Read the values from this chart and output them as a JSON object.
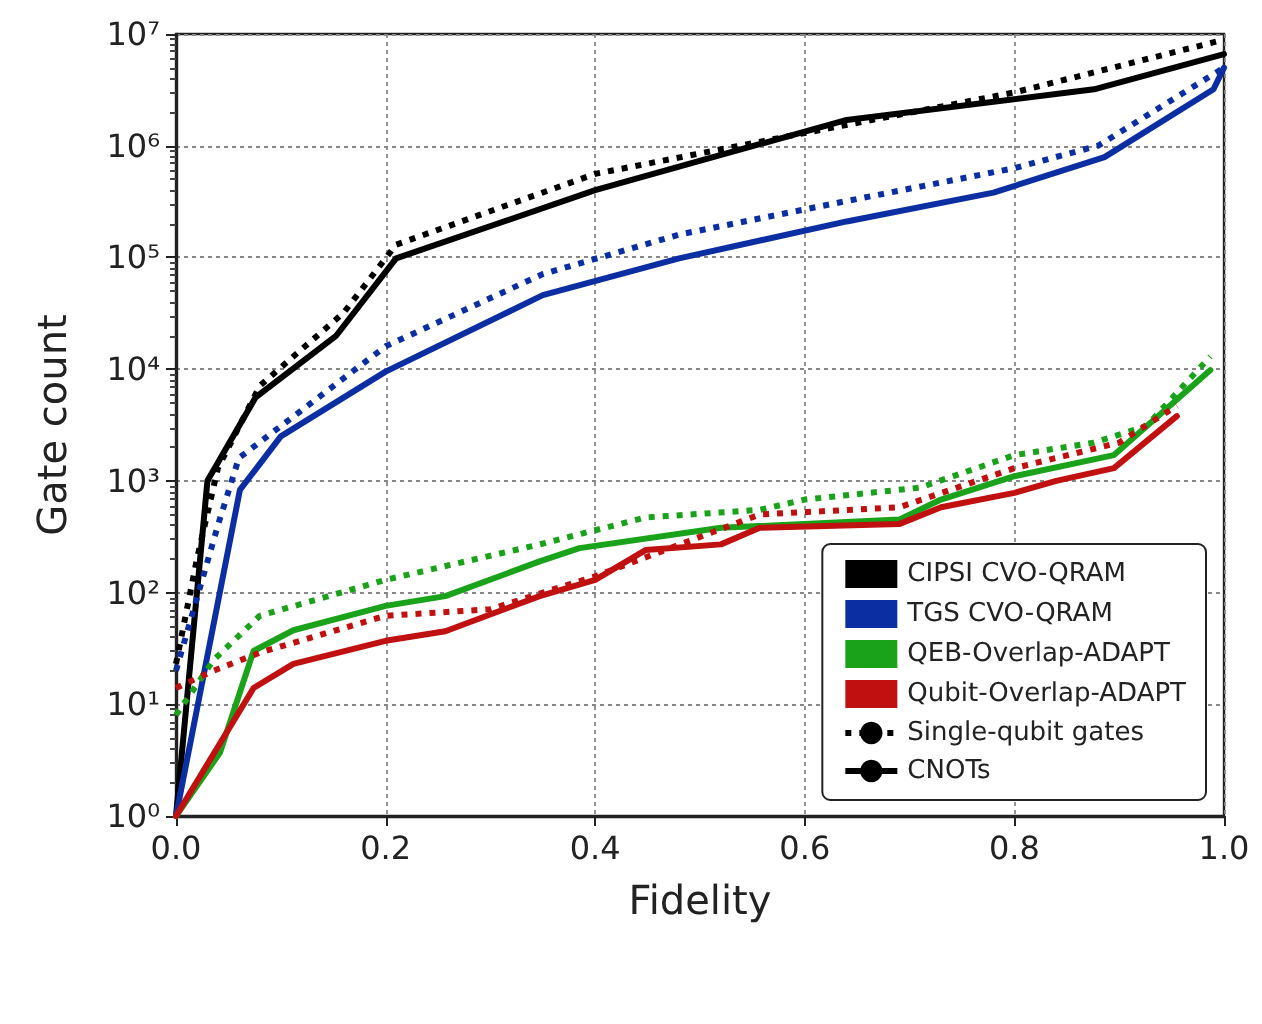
{
  "chart_data": {
    "type": "line",
    "xlabel": "Fidelity",
    "ylabel": "Gate count",
    "log": "y",
    "grid": true,
    "legend": "bottom right",
    "marker": "none",
    "xlim": [
      0,
      1
    ],
    "xticks": [
      {
        "value": 0,
        "label": "0.0"
      },
      {
        "value": 0.2,
        "label": "0.2"
      },
      {
        "value": 0.4,
        "label": "0.4"
      },
      {
        "value": 0.6,
        "label": "0.6"
      },
      {
        "value": 0.8,
        "label": "0.8"
      },
      {
        "value": 1,
        "label": "1.0"
      }
    ],
    "ylim": [
      1,
      10000000
    ],
    "yticks": [
      {
        "value": 1,
        "label": "10⁰"
      },
      {
        "value": 10,
        "label": "10¹"
      },
      {
        "value": 100,
        "label": "10²"
      },
      {
        "value": 1000,
        "label": "10³"
      },
      {
        "value": 10000,
        "label": "10⁴"
      },
      {
        "value": 100000,
        "label": "10⁵"
      },
      {
        "value": 1000000,
        "label": "10⁶"
      },
      {
        "value": 10000000,
        "label": "10⁷"
      }
    ],
    "series": [
      {
        "name": "CIPSI CVO-QRAM",
        "color": "#000000",
        "line_style": "solid",
        "x": [
          0,
          0.03,
          0.076,
          0.153,
          0.21,
          0.4,
          0.48,
          0.64,
          0.876,
          1.0
        ],
        "values": [
          1,
          1000,
          5600,
          20000,
          98000,
          400000,
          650000,
          1700000,
          3200000,
          6600000
        ]
      },
      {
        "color": "#000000",
        "line_style": "dotted",
        "x": [
          0,
          0.02,
          0.04,
          0.08,
          0.16,
          0.21,
          0.4,
          0.6,
          0.8,
          1.0
        ],
        "values": [
          23,
          200,
          1300,
          7100,
          32000,
          130000,
          560000,
          1300000,
          3000000,
          8900000
        ]
      },
      {
        "name": "TGS CVO-QRAM",
        "color": "#0c2ea3",
        "line_style": "solid",
        "x": [
          0,
          0.061,
          0.1,
          0.2,
          0.35,
          0.48,
          0.64,
          0.78,
          0.886,
          0.99,
          1.0
        ],
        "values": [
          1,
          830,
          2500,
          9500,
          46000,
          98000,
          210000,
          380000,
          790000,
          3200000,
          5000000
        ]
      },
      {
        "color": "#0c2ea3",
        "line_style": "dotted",
        "x": [
          0,
          0.04,
          0.06,
          0.2,
          0.35,
          0.48,
          0.64,
          0.8,
          0.88,
          1.0
        ],
        "values": [
          20,
          400,
          1600,
          16000,
          71000,
          160000,
          320000,
          630000,
          1000000,
          5000000
        ]
      },
      {
        "name": "QEB-Overlap-ADAPT",
        "color": "#1aa31a",
        "line_style": "solid",
        "x": [
          0,
          0.042,
          0.074,
          0.112,
          0.2,
          0.257,
          0.347,
          0.385,
          0.52,
          0.69,
          0.73,
          0.8,
          0.895,
          0.987
        ],
        "values": [
          1,
          3.7,
          30,
          46,
          76,
          93,
          190,
          250,
          380,
          450,
          680,
          1100,
          1700,
          9800
        ]
      },
      {
        "color": "#1aa31a",
        "line_style": "dotted",
        "x": [
          0,
          0.036,
          0.08,
          0.2,
          0.347,
          0.448,
          0.557,
          0.6,
          0.71,
          0.8,
          0.876,
          0.926,
          0.987
        ],
        "values": [
          8,
          25,
          62,
          130,
          270,
          470,
          550,
          680,
          870,
          1700,
          2200,
          3100,
          13000
        ]
      },
      {
        "name": "Qubit-Overlap-ADAPT",
        "color": "#c01010",
        "line_style": "solid",
        "x": [
          0,
          0.074,
          0.112,
          0.2,
          0.257,
          0.347,
          0.4,
          0.448,
          0.52,
          0.557,
          0.69,
          0.73,
          0.8,
          0.84,
          0.895,
          0.955
        ],
        "values": [
          1,
          14,
          23,
          37,
          45,
          93,
          130,
          240,
          270,
          380,
          410,
          580,
          780,
          1000,
          1300,
          3800
        ]
      },
      {
        "color": "#c01010",
        "line_style": "dotted",
        "x": [
          0,
          0.036,
          0.08,
          0.2,
          0.3,
          0.4,
          0.557,
          0.69,
          0.8,
          0.9,
          0.955
        ],
        "values": [
          14,
          20,
          29,
          62,
          71,
          140,
          500,
          580,
          1300,
          2200,
          4700
        ]
      },
      {
        "name": "Single-qubit gates",
        "color": "#000000",
        "line_style": "dotted"
      },
      {
        "name": "CNOTs",
        "color": "#000000",
        "line_style": "solid"
      }
    ]
  }
}
